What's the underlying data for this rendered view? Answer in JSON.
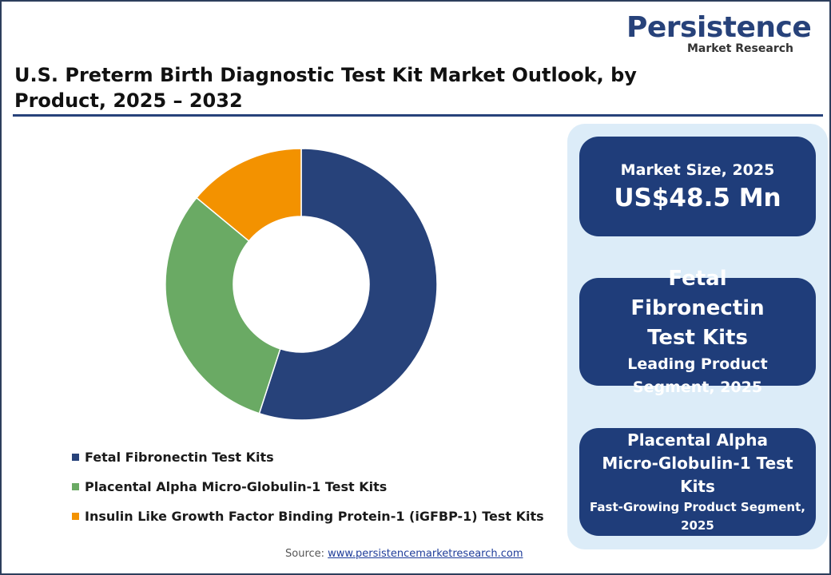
{
  "header": {
    "logo": "Persistence",
    "logo_sub": "Market Research"
  },
  "title": "U.S. Preterm Birth Diagnostic Test Kit Market Outlook, by Product, 2025 – 2032",
  "chart_data": {
    "type": "donut",
    "categories": [
      "Fetal Fibronectin Test Kits",
      "Placental Alpha Micro-Globulin-1 Test Kits",
      "Insulin Like Growth Factor Binding Protein-1 (iGFBP-1) Test Kits"
    ],
    "values": [
      55,
      31,
      14
    ],
    "colors": [
      "#27427a",
      "#6aaa64",
      "#f39200"
    ]
  },
  "cards": [
    {
      "label": "Market Size, 2025",
      "value": "US$48.5 Mn"
    },
    {
      "value": "Fetal Fibronectin Test Kits",
      "label": "Leading Product Segment, 2025"
    },
    {
      "value": "Placental Alpha Micro-Globulin-1 Test Kits",
      "label": "Fast-Growing Product Segment, 2025"
    }
  ],
  "source": {
    "label": "Source:",
    "url": "www.persistencemarketresearch.com"
  }
}
